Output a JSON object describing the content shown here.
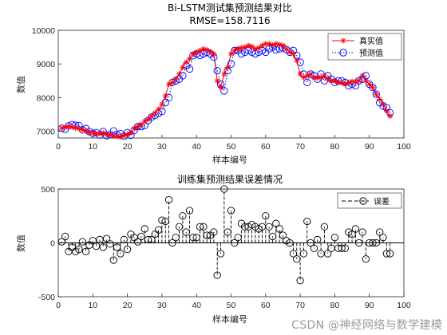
{
  "chart_data": [
    {
      "type": "line",
      "title": "Bi-LSTM测试集预测结果对比",
      "subtitle": "RMSE=158.7116",
      "xlabel": "样本编号",
      "ylabel": "数值",
      "xlim": [
        0,
        100
      ],
      "ylim": [
        6800,
        10000
      ],
      "xticks": [
        "0",
        "10",
        "20",
        "30",
        "40",
        "50",
        "60",
        "70",
        "80",
        "90",
        "100"
      ],
      "yticks": [
        "7000",
        "8000",
        "9000",
        "10000"
      ],
      "legend_position": "top-right",
      "grid": false,
      "colors": {
        "true": "#ff0000",
        "pred": "#0000ff"
      },
      "x": [
        1,
        2,
        3,
        4,
        5,
        6,
        7,
        8,
        9,
        10,
        11,
        12,
        13,
        14,
        15,
        16,
        17,
        18,
        19,
        20,
        21,
        22,
        23,
        24,
        25,
        26,
        27,
        28,
        29,
        30,
        31,
        32,
        33,
        34,
        35,
        36,
        37,
        38,
        39,
        40,
        41,
        42,
        43,
        44,
        45,
        46,
        47,
        48,
        49,
        50,
        51,
        52,
        53,
        54,
        55,
        56,
        57,
        58,
        59,
        60,
        61,
        62,
        63,
        64,
        65,
        66,
        67,
        68,
        69,
        70,
        71,
        72,
        73,
        74,
        75,
        76,
        77,
        78,
        79,
        80,
        81,
        82,
        83,
        84,
        85,
        86,
        87,
        88,
        89,
        90,
        91,
        92,
        93,
        94,
        95,
        96
      ],
      "series": [
        {
          "name": "真实值",
          "style": "red-solid-asterisk",
          "values": [
            7100,
            7120,
            7150,
            7120,
            7100,
            7080,
            7050,
            7000,
            6950,
            6960,
            6930,
            6920,
            6950,
            6910,
            6890,
            6850,
            6860,
            6830,
            6880,
            6900,
            6960,
            7080,
            7150,
            7200,
            7300,
            7350,
            7450,
            7550,
            7650,
            7800,
            8050,
            8400,
            8450,
            8550,
            8700,
            8900,
            9050,
            9150,
            9300,
            9350,
            9400,
            9450,
            9420,
            9370,
            9300,
            8500,
            8300,
            8700,
            8900,
            9300,
            9400,
            9450,
            9480,
            9500,
            9550,
            9520,
            9450,
            9480,
            9550,
            9600,
            9600,
            9560,
            9600,
            9580,
            9550,
            9450,
            9350,
            9300,
            9100,
            8700,
            8600,
            8650,
            8700,
            8600,
            8580,
            8600,
            8650,
            8550,
            8500,
            8500,
            8450,
            8450,
            8400,
            8450,
            8480,
            8480,
            8500,
            8650,
            8500,
            8400,
            8300,
            8100,
            7950,
            7800,
            7600,
            7450
          ]
        },
        {
          "name": "预测值",
          "style": "blue-dotted-circle",
          "values": [
            7090,
            7060,
            7160,
            7200,
            7180,
            7170,
            7040,
            7080,
            6990,
            6940,
            6960,
            6890,
            6990,
            6870,
            6900,
            7010,
            6900,
            6930,
            6850,
            6960,
            6880,
            7030,
            7140,
            7140,
            7170,
            7320,
            7420,
            7470,
            7530,
            7590,
            7850,
            8000,
            8450,
            8500,
            8550,
            8650,
            8950,
            8850,
            9250,
            9300,
            9250,
            9300,
            9350,
            9300,
            9200,
            8800,
            8400,
            8200,
            8800,
            9000,
            9400,
            9400,
            9300,
            9350,
            9400,
            9350,
            9300,
            9350,
            9400,
            9350,
            9450,
            9500,
            9420,
            9450,
            9480,
            9430,
            9350,
            9400,
            9250,
            9050,
            8700,
            8450,
            8700,
            8650,
            8550,
            8700,
            8500,
            8650,
            8550,
            8450,
            8500,
            8500,
            8450,
            8350,
            8400,
            8350,
            8500,
            8550,
            8650,
            8400,
            8300,
            8100,
            7850,
            7750,
            7700,
            7550
          ]
        }
      ]
    },
    {
      "type": "stem",
      "title": "训练集预测结果误差情况",
      "xlabel": "样本编号",
      "ylabel": "数值",
      "xlim": [
        0,
        100
      ],
      "ylim": [
        -500,
        500
      ],
      "xticks": [
        "0",
        "10",
        "20",
        "30",
        "40",
        "50",
        "60",
        "70",
        "80",
        "90",
        "100"
      ],
      "yticks": [
        "-500",
        "0",
        "500"
      ],
      "legend_position": "top-right",
      "grid": false,
      "colors": {
        "stem": "#000000"
      },
      "x": [
        1,
        2,
        3,
        4,
        5,
        6,
        7,
        8,
        9,
        10,
        11,
        12,
        13,
        14,
        15,
        16,
        17,
        18,
        19,
        20,
        21,
        22,
        23,
        24,
        25,
        26,
        27,
        28,
        29,
        30,
        31,
        32,
        33,
        34,
        35,
        36,
        37,
        38,
        39,
        40,
        41,
        42,
        43,
        44,
        45,
        46,
        47,
        48,
        49,
        50,
        51,
        52,
        53,
        54,
        55,
        56,
        57,
        58,
        59,
        60,
        61,
        62,
        63,
        64,
        65,
        66,
        67,
        68,
        69,
        70,
        71,
        72,
        73,
        74,
        75,
        76,
        77,
        78,
        79,
        80,
        81,
        82,
        83,
        84,
        85,
        86,
        87,
        88,
        89,
        90,
        91,
        92,
        93,
        94,
        95,
        96
      ],
      "series": [
        {
          "name": "误差",
          "style": "black-dashed-circle",
          "values": [
            10,
            60,
            -80,
            -40,
            -80,
            -60,
            10,
            -80,
            -20,
            20,
            -30,
            30,
            -40,
            40,
            -10,
            -160,
            -40,
            -100,
            30,
            -60,
            80,
            50,
            10,
            60,
            130,
            30,
            30,
            80,
            120,
            210,
            200,
            400,
            0,
            50,
            150,
            250,
            100,
            300,
            50,
            50,
            150,
            150,
            70,
            70,
            100,
            -300,
            -100,
            500,
            100,
            300,
            0,
            50,
            180,
            150,
            150,
            170,
            150,
            130,
            150,
            250,
            150,
            60,
            180,
            130,
            70,
            20,
            0,
            -100,
            -150,
            -350,
            -100,
            200,
            0,
            -50,
            30,
            -100,
            150,
            -100,
            -50,
            50,
            -50,
            -50,
            -50,
            100,
            80,
            130,
            0,
            100,
            -150,
            0,
            0,
            0,
            100,
            50,
            -100,
            -100
          ]
        }
      ]
    }
  ],
  "watermark": "CSDN @神经网络与数学建模"
}
